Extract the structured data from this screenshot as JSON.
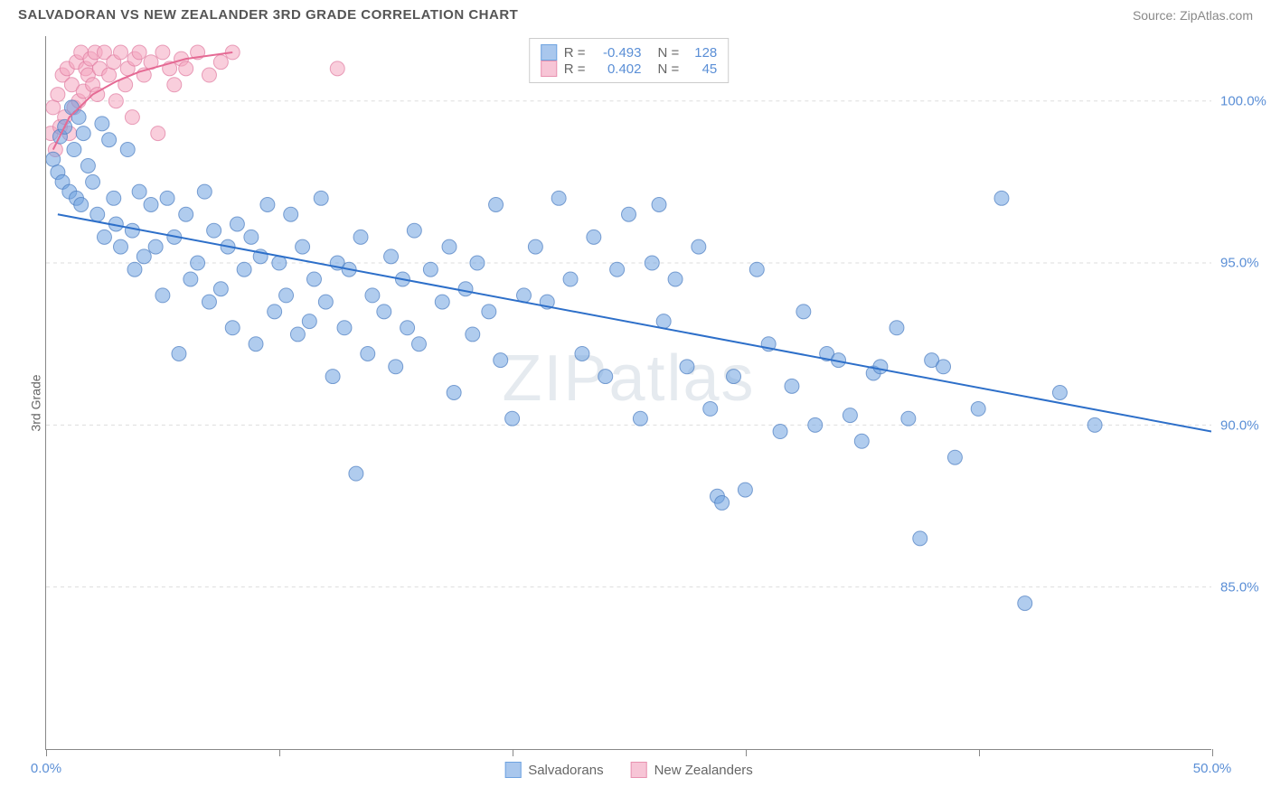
{
  "title": "SALVADORAN VS NEW ZEALANDER 3RD GRADE CORRELATION CHART",
  "source": "Source: ZipAtlas.com",
  "ylabel": "3rd Grade",
  "watermark_bold": "ZIP",
  "watermark_light": "atlas",
  "chart": {
    "type": "scatter",
    "background_color": "#ffffff",
    "grid_color": "#dddddd",
    "axis_color": "#888888",
    "xlim": [
      0,
      50
    ],
    "ylim": [
      80,
      102
    ],
    "xticks": [
      0,
      10,
      20,
      30,
      40,
      50
    ],
    "xtick_labels": [
      "0.0%",
      "",
      "",
      "",
      "",
      "50.0%"
    ],
    "yticks": [
      85,
      90,
      95,
      100
    ],
    "ytick_labels": [
      "85.0%",
      "90.0%",
      "95.0%",
      "100.0%"
    ],
    "ytick_label_color": "#5b8fd6",
    "xtick_label_color": "#5b8fd6",
    "marker_radius": 8,
    "marker_opacity": 0.55,
    "line_width": 2,
    "series": [
      {
        "name": "Salvadorans",
        "color": "#6fa3e0",
        "stroke": "#4a7cc0",
        "legend_swatch_fill": "#a9c7ed",
        "legend_swatch_stroke": "#6fa3e0",
        "R": "-0.493",
        "N": "128",
        "trend_line": {
          "x1": 0.5,
          "y1": 96.5,
          "x2": 50,
          "y2": 89.8,
          "color": "#2d6fc9"
        },
        "points": [
          [
            0.3,
            98.2
          ],
          [
            0.5,
            97.8
          ],
          [
            0.6,
            98.9
          ],
          [
            0.7,
            97.5
          ],
          [
            0.8,
            99.2
          ],
          [
            1.0,
            97.2
          ],
          [
            1.1,
            99.8
          ],
          [
            1.2,
            98.5
          ],
          [
            1.3,
            97.0
          ],
          [
            1.4,
            99.5
          ],
          [
            1.5,
            96.8
          ],
          [
            1.6,
            99.0
          ],
          [
            1.8,
            98.0
          ],
          [
            2.0,
            97.5
          ],
          [
            2.2,
            96.5
          ],
          [
            2.4,
            99.3
          ],
          [
            2.5,
            95.8
          ],
          [
            2.7,
            98.8
          ],
          [
            2.9,
            97.0
          ],
          [
            3.0,
            96.2
          ],
          [
            3.2,
            95.5
          ],
          [
            3.5,
            98.5
          ],
          [
            3.7,
            96.0
          ],
          [
            3.8,
            94.8
          ],
          [
            4.0,
            97.2
          ],
          [
            4.2,
            95.2
          ],
          [
            4.5,
            96.8
          ],
          [
            4.7,
            95.5
          ],
          [
            5.0,
            94.0
          ],
          [
            5.2,
            97.0
          ],
          [
            5.5,
            95.8
          ],
          [
            5.7,
            92.2
          ],
          [
            6.0,
            96.5
          ],
          [
            6.2,
            94.5
          ],
          [
            6.5,
            95.0
          ],
          [
            6.8,
            97.2
          ],
          [
            7.0,
            93.8
          ],
          [
            7.2,
            96.0
          ],
          [
            7.5,
            94.2
          ],
          [
            7.8,
            95.5
          ],
          [
            8.0,
            93.0
          ],
          [
            8.2,
            96.2
          ],
          [
            8.5,
            94.8
          ],
          [
            8.8,
            95.8
          ],
          [
            9.0,
            92.5
          ],
          [
            9.2,
            95.2
          ],
          [
            9.5,
            96.8
          ],
          [
            9.8,
            93.5
          ],
          [
            10.0,
            95.0
          ],
          [
            10.3,
            94.0
          ],
          [
            10.5,
            96.5
          ],
          [
            10.8,
            92.8
          ],
          [
            11.0,
            95.5
          ],
          [
            11.3,
            93.2
          ],
          [
            11.5,
            94.5
          ],
          [
            11.8,
            97.0
          ],
          [
            12.0,
            93.8
          ],
          [
            12.3,
            91.5
          ],
          [
            12.5,
            95.0
          ],
          [
            12.8,
            93.0
          ],
          [
            13.0,
            94.8
          ],
          [
            13.3,
            88.5
          ],
          [
            13.5,
            95.8
          ],
          [
            13.8,
            92.2
          ],
          [
            14.0,
            94.0
          ],
          [
            14.5,
            93.5
          ],
          [
            14.8,
            95.2
          ],
          [
            15.0,
            91.8
          ],
          [
            15.3,
            94.5
          ],
          [
            15.5,
            93.0
          ],
          [
            15.8,
            96.0
          ],
          [
            16.0,
            92.5
          ],
          [
            16.5,
            94.8
          ],
          [
            17.0,
            93.8
          ],
          [
            17.3,
            95.5
          ],
          [
            17.5,
            91.0
          ],
          [
            18.0,
            94.2
          ],
          [
            18.3,
            92.8
          ],
          [
            18.5,
            95.0
          ],
          [
            19.0,
            93.5
          ],
          [
            19.3,
            96.8
          ],
          [
            19.5,
            92.0
          ],
          [
            20.0,
            90.2
          ],
          [
            20.5,
            94.0
          ],
          [
            21.0,
            95.5
          ],
          [
            21.5,
            93.8
          ],
          [
            22.0,
            97.0
          ],
          [
            22.5,
            94.5
          ],
          [
            23.0,
            92.2
          ],
          [
            23.5,
            95.8
          ],
          [
            24.0,
            91.5
          ],
          [
            24.5,
            94.8
          ],
          [
            25.0,
            96.5
          ],
          [
            25.5,
            90.2
          ],
          [
            26.0,
            95.0
          ],
          [
            26.3,
            96.8
          ],
          [
            26.5,
            93.2
          ],
          [
            27.0,
            94.5
          ],
          [
            27.5,
            91.8
          ],
          [
            28.0,
            95.5
          ],
          [
            28.5,
            90.5
          ],
          [
            28.8,
            87.8
          ],
          [
            29.0,
            87.6
          ],
          [
            29.5,
            91.5
          ],
          [
            30.0,
            88.0
          ],
          [
            30.5,
            94.8
          ],
          [
            31.0,
            92.5
          ],
          [
            31.5,
            89.8
          ],
          [
            32.0,
            91.2
          ],
          [
            32.5,
            93.5
          ],
          [
            33.0,
            90.0
          ],
          [
            33.5,
            92.2
          ],
          [
            34.0,
            92.0
          ],
          [
            34.5,
            90.3
          ],
          [
            35.0,
            89.5
          ],
          [
            35.5,
            91.6
          ],
          [
            35.8,
            91.8
          ],
          [
            36.5,
            93.0
          ],
          [
            37.0,
            90.2
          ],
          [
            37.5,
            86.5
          ],
          [
            38.0,
            92.0
          ],
          [
            38.5,
            91.8
          ],
          [
            39.0,
            89.0
          ],
          [
            40.0,
            90.5
          ],
          [
            41.0,
            97.0
          ],
          [
            42.0,
            84.5
          ],
          [
            43.5,
            91.0
          ],
          [
            45.0,
            90.0
          ]
        ]
      },
      {
        "name": "New Zealanders",
        "color": "#f4a6c0",
        "stroke": "#e07ba0",
        "legend_swatch_fill": "#f7c5d6",
        "legend_swatch_stroke": "#e892b0",
        "R": "0.402",
        "N": "45",
        "trend_line_curve": [
          [
            0.3,
            98.5
          ],
          [
            1,
            99.5
          ],
          [
            2,
            100.2
          ],
          [
            3,
            100.6
          ],
          [
            4,
            100.9
          ],
          [
            5,
            101.1
          ],
          [
            6,
            101.3
          ],
          [
            8,
            101.5
          ]
        ],
        "trend_color": "#e56a94",
        "points": [
          [
            0.2,
            99.0
          ],
          [
            0.3,
            99.8
          ],
          [
            0.4,
            98.5
          ],
          [
            0.5,
            100.2
          ],
          [
            0.6,
            99.2
          ],
          [
            0.7,
            100.8
          ],
          [
            0.8,
            99.5
          ],
          [
            0.9,
            101.0
          ],
          [
            1.0,
            99.0
          ],
          [
            1.1,
            100.5
          ],
          [
            1.2,
            99.8
          ],
          [
            1.3,
            101.2
          ],
          [
            1.4,
            100.0
          ],
          [
            1.5,
            101.5
          ],
          [
            1.6,
            100.3
          ],
          [
            1.7,
            101.0
          ],
          [
            1.8,
            100.8
          ],
          [
            1.9,
            101.3
          ],
          [
            2.0,
            100.5
          ],
          [
            2.1,
            101.5
          ],
          [
            2.2,
            100.2
          ],
          [
            2.3,
            101.0
          ],
          [
            2.5,
            101.5
          ],
          [
            2.7,
            100.8
          ],
          [
            2.9,
            101.2
          ],
          [
            3.0,
            100.0
          ],
          [
            3.2,
            101.5
          ],
          [
            3.4,
            100.5
          ],
          [
            3.5,
            101.0
          ],
          [
            3.7,
            99.5
          ],
          [
            3.8,
            101.3
          ],
          [
            4.0,
            101.5
          ],
          [
            4.2,
            100.8
          ],
          [
            4.5,
            101.2
          ],
          [
            4.8,
            99.0
          ],
          [
            5.0,
            101.5
          ],
          [
            5.3,
            101.0
          ],
          [
            5.5,
            100.5
          ],
          [
            5.8,
            101.3
          ],
          [
            6.0,
            101.0
          ],
          [
            6.5,
            101.5
          ],
          [
            7.0,
            100.8
          ],
          [
            7.5,
            101.2
          ],
          [
            8.0,
            101.5
          ],
          [
            12.5,
            101.0
          ]
        ]
      }
    ],
    "legend_top": {
      "rows": [
        {
          "swatch": 0,
          "r_label": "R =",
          "r_value": "-0.493",
          "n_label": "N =",
          "n_value": "128"
        },
        {
          "swatch": 1,
          "r_label": "R =",
          "r_value": " 0.402",
          "n_label": "N =",
          "n_value": " 45"
        }
      ]
    },
    "legend_bottom": [
      {
        "swatch": 0,
        "label": "Salvadorans"
      },
      {
        "swatch": 1,
        "label": "New Zealanders"
      }
    ]
  }
}
